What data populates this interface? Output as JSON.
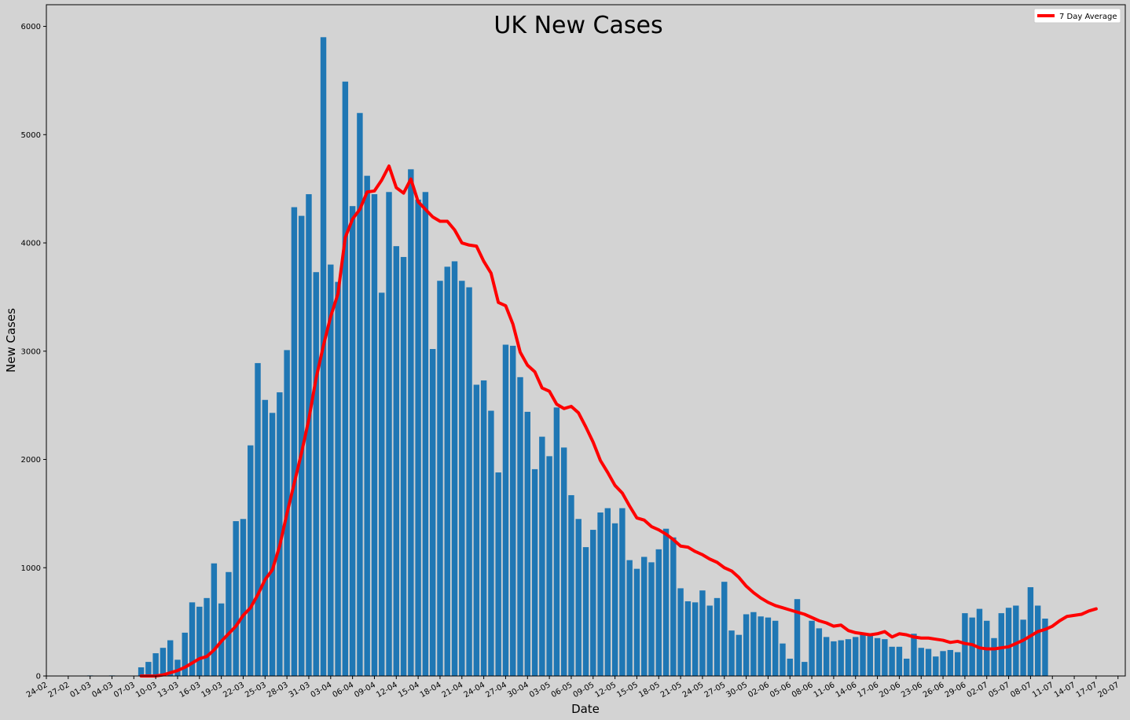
{
  "chart_data": {
    "type": "bar",
    "title": "UK New Cases",
    "xlabel": "Date",
    "ylabel": "New Cases",
    "ylim": [
      0,
      6200
    ],
    "yticks": [
      0,
      1000,
      2000,
      3000,
      4000,
      5000,
      6000
    ],
    "x_range": [
      "2020-02-24",
      "2020-07-21"
    ],
    "xtick_labels": [
      "24-02",
      "27-02",
      "01-03",
      "04-03",
      "07-03",
      "10-03",
      "13-03",
      "16-03",
      "19-03",
      "22-03",
      "25-03",
      "28-03",
      "31-03",
      "03-04",
      "06-04",
      "09-04",
      "12-04",
      "15-04",
      "18-04",
      "21-04",
      "24-04",
      "27-04",
      "30-04",
      "03-05",
      "06-05",
      "09-05",
      "12-05",
      "15-05",
      "18-05",
      "21-05",
      "24-05",
      "27-05",
      "30-05",
      "02-06",
      "05-06",
      "08-06",
      "11-06",
      "14-06",
      "17-06",
      "20-06",
      "23-06",
      "26-06",
      "29-06",
      "02-07",
      "05-07",
      "08-07",
      "11-07",
      "14-07",
      "17-07",
      "20-07"
    ],
    "grid": false,
    "legend_position": "top-right",
    "series": [
      {
        "type": "bar",
        "color": "#1f77b4",
        "start_date": "2020-03-01",
        "values": [
          5,
          3,
          3,
          5,
          3,
          0,
          0,
          80,
          130,
          210,
          260,
          330,
          150,
          400,
          680,
          640,
          720,
          1040,
          670,
          960,
          1430,
          1450,
          2130,
          2890,
          2550,
          2430,
          2620,
          3010,
          4330,
          4250,
          4450,
          3730,
          5900,
          3800,
          3640,
          5490,
          4340,
          5200,
          4620,
          4450,
          3540,
          4470,
          3970,
          3870,
          4680,
          4400,
          4470,
          3020,
          3650,
          3780,
          3830,
          3650,
          3590,
          2690,
          2730,
          2450,
          1880,
          3060,
          3050,
          2760,
          2440,
          1910,
          2210,
          2030,
          2480,
          2110,
          1670,
          1450,
          1190,
          1350,
          1510,
          1550,
          1410,
          1550,
          1070,
          990,
          1100,
          1050,
          1170,
          1360,
          1280,
          810,
          690,
          680,
          790,
          650,
          720,
          870,
          420,
          380,
          570,
          590,
          550,
          540,
          510,
          300,
          160,
          710,
          130,
          510,
          440,
          360,
          320,
          330,
          340,
          360,
          380,
          370,
          350,
          340,
          270,
          270,
          160,
          390,
          260,
          250,
          180,
          230,
          240,
          220,
          580,
          540,
          620,
          510,
          350,
          580,
          630,
          650,
          520,
          820,
          650,
          530
        ]
      },
      {
        "type": "line",
        "name": "7 Day Average",
        "color": "#ff0000",
        "start_date": "2020-03-08",
        "values": [
          0,
          0,
          0,
          10,
          30,
          50,
          80,
          120,
          160,
          180,
          240,
          320,
          390,
          460,
          560,
          630,
          750,
          890,
          980,
          1200,
          1500,
          1780,
          2060,
          2370,
          2750,
          3050,
          3320,
          3530,
          4050,
          4220,
          4310,
          4470,
          4480,
          4580,
          4710,
          4510,
          4460,
          4590,
          4380,
          4310,
          4240,
          4200,
          4200,
          4120,
          4000,
          3980,
          3970,
          3830,
          3720,
          3450,
          3420,
          3250,
          2990,
          2870,
          2810,
          2660,
          2630,
          2510,
          2470,
          2490,
          2430,
          2300,
          2160,
          1990,
          1880,
          1760,
          1690,
          1570,
          1460,
          1440,
          1380,
          1350,
          1310,
          1260,
          1200,
          1190,
          1150,
          1120,
          1080,
          1050,
          1000,
          970,
          910,
          830,
          770,
          720,
          680,
          650,
          630,
          610,
          590,
          570,
          540,
          510,
          490,
          460,
          470,
          420,
          400,
          390,
          380,
          390,
          410,
          360,
          390,
          380,
          360,
          350,
          350,
          340,
          330,
          310,
          320,
          300,
          290,
          260,
          250,
          250,
          260,
          270,
          300,
          330,
          370,
          410,
          430,
          460,
          510,
          550,
          560,
          570,
          600,
          620
        ]
      }
    ]
  }
}
